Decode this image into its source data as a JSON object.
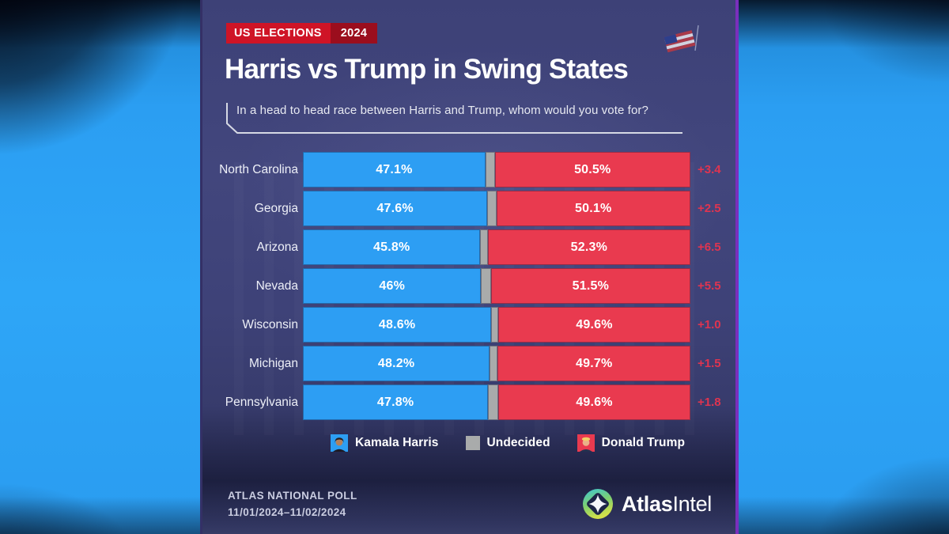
{
  "theme": {
    "side_blue": "#2ba2f5",
    "panel_navy": "#3e4277",
    "badge_red": "#cf1426",
    "badge_dark_red": "#9b0e1d",
    "margin_red": "#df3450",
    "undecided_gray": "#a9abab",
    "harris_blue": "#2d9ef3",
    "trump_red": "#e93a4f"
  },
  "header": {
    "badge_label": "US ELECTIONS",
    "badge_year": "2024",
    "title": "Harris vs Trump in Swing States",
    "subtitle": "In a head to head race between Harris and Trump, whom would you vote for?"
  },
  "chart_data": {
    "type": "bar",
    "orientation": "horizontal",
    "stacked": true,
    "title": "Harris vs Trump in Swing States",
    "question": "In a head to head race between Harris and Trump, whom would you vote for?",
    "categories": [
      "North Carolina",
      "Georgia",
      "Arizona",
      "Nevada",
      "Wisconsin",
      "Michigan",
      "Pennsylvania"
    ],
    "series": [
      {
        "name": "Kamala Harris",
        "color": "#2d9ef3",
        "values": [
          47.1,
          47.6,
          45.8,
          46,
          48.6,
          48.2,
          47.8
        ],
        "labels": [
          "47.1%",
          "47.6%",
          "45.8%",
          "46%",
          "48.6%",
          "48.2%",
          "47.8%"
        ]
      },
      {
        "name": "Undecided",
        "color": "#a9abab",
        "values": [
          2.4,
          2.3,
          1.9,
          2.5,
          1.8,
          2.1,
          2.6
        ],
        "labels": [
          "",
          "",
          "",
          "",
          "",
          "",
          ""
        ]
      },
      {
        "name": "Donald Trump",
        "color": "#e93a4f",
        "values": [
          50.5,
          50.1,
          52.3,
          51.5,
          49.6,
          49.7,
          49.6
        ],
        "labels": [
          "50.5%",
          "50.1%",
          "52.3%",
          "51.5%",
          "49.6%",
          "49.7%",
          "49.6%"
        ]
      }
    ],
    "trump_margins": [
      "+3.4",
      "+2.5",
      "+6.5",
      "+5.5",
      "+1.0",
      "+1.5",
      "+1.8"
    ],
    "xlim": [
      0,
      100
    ],
    "grid": false,
    "legend_position": "bottom"
  },
  "legend": {
    "items": [
      {
        "label": "Kamala Harris",
        "swatch": "harris-photo",
        "color": "#2d9ef3"
      },
      {
        "label": "Undecided",
        "swatch": "gray-square",
        "color": "#a9abab"
      },
      {
        "label": "Donald Trump",
        "swatch": "trump-photo",
        "color": "#e93a4f"
      }
    ]
  },
  "footer": {
    "poll_name": "ATLAS NATIONAL POLL",
    "poll_dates": "11/01/2024–11/02/2024",
    "brand_bold": "Atlas",
    "brand_light": "Intel"
  }
}
